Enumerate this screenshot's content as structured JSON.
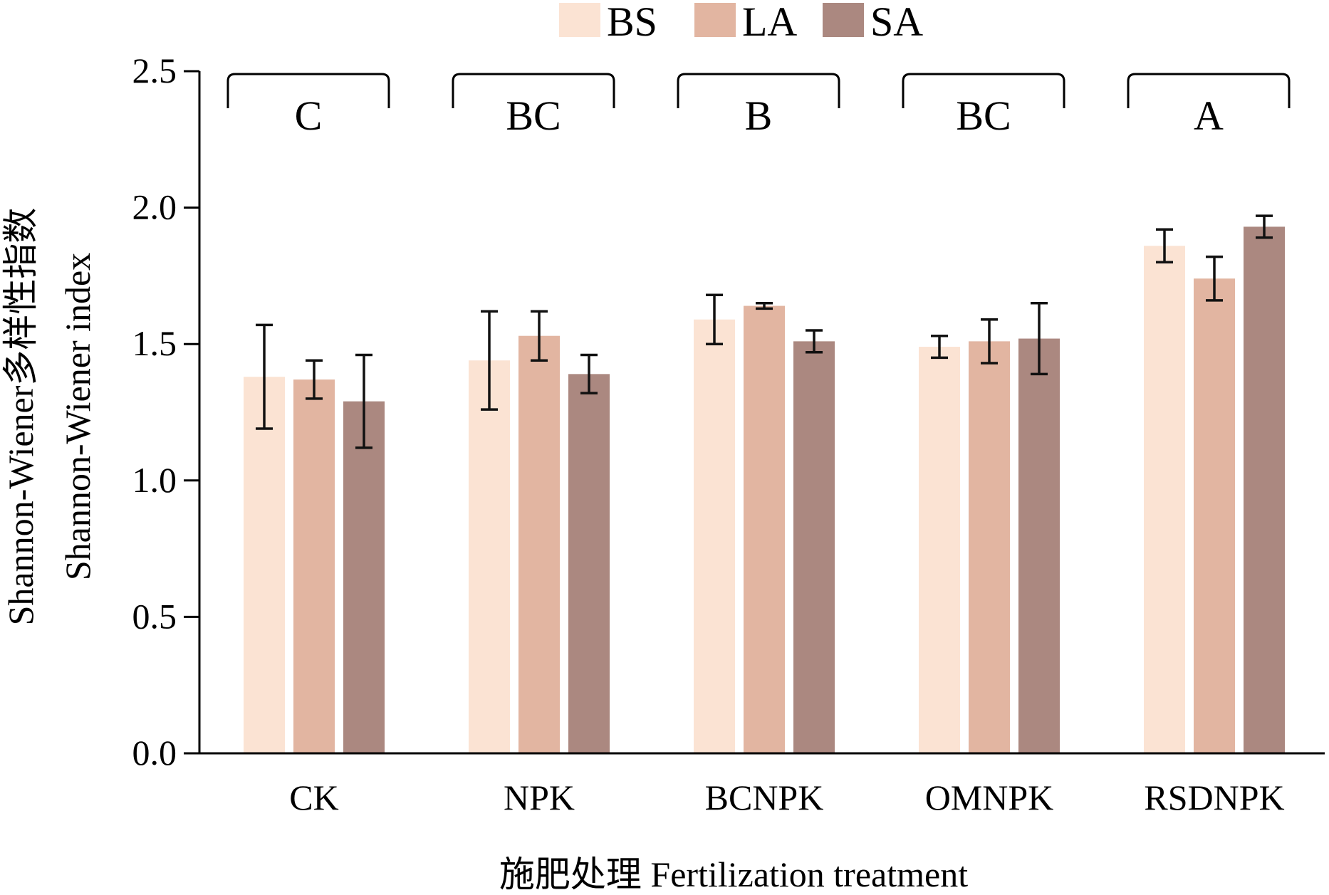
{
  "chart_data": {
    "type": "bar",
    "title": "",
    "xlabel": "施肥处理 Fertilization treatment",
    "ylabel_lines": [
      "Shannon-Wiener多样性指数",
      "Shannon-Wiener index"
    ],
    "ylim": [
      0,
      2.5
    ],
    "yticks": [
      "0.0",
      "0.5",
      "1.0",
      "1.5",
      "2.0",
      "2.5"
    ],
    "ytick_values": [
      0,
      0.5,
      1.0,
      1.5,
      2.0,
      2.5
    ],
    "categories": [
      "CK",
      "NPK",
      "BCNPK",
      "OMNPK",
      "RSDNPK"
    ],
    "series": [
      {
        "name": "BS",
        "color": "#fbe3d3",
        "values": [
          1.38,
          1.44,
          1.59,
          1.49,
          1.86
        ],
        "errors": [
          0.19,
          0.18,
          0.09,
          0.04,
          0.06
        ]
      },
      {
        "name": "LA",
        "color": "#e2b5a1",
        "values": [
          1.37,
          1.53,
          1.64,
          1.51,
          1.74
        ],
        "errors": [
          0.07,
          0.09,
          0.01,
          0.08,
          0.08
        ]
      },
      {
        "name": "SA",
        "color": "#ab8880",
        "values": [
          1.29,
          1.39,
          1.51,
          1.52,
          1.93
        ],
        "errors": [
          0.17,
          0.07,
          0.04,
          0.13,
          0.04
        ]
      }
    ],
    "group_letters": [
      "C",
      "BC",
      "B",
      "BC",
      "A"
    ],
    "legend": {
      "placement": "top-center",
      "entries": [
        "BS",
        "LA",
        "SA"
      ]
    },
    "grid": false
  }
}
